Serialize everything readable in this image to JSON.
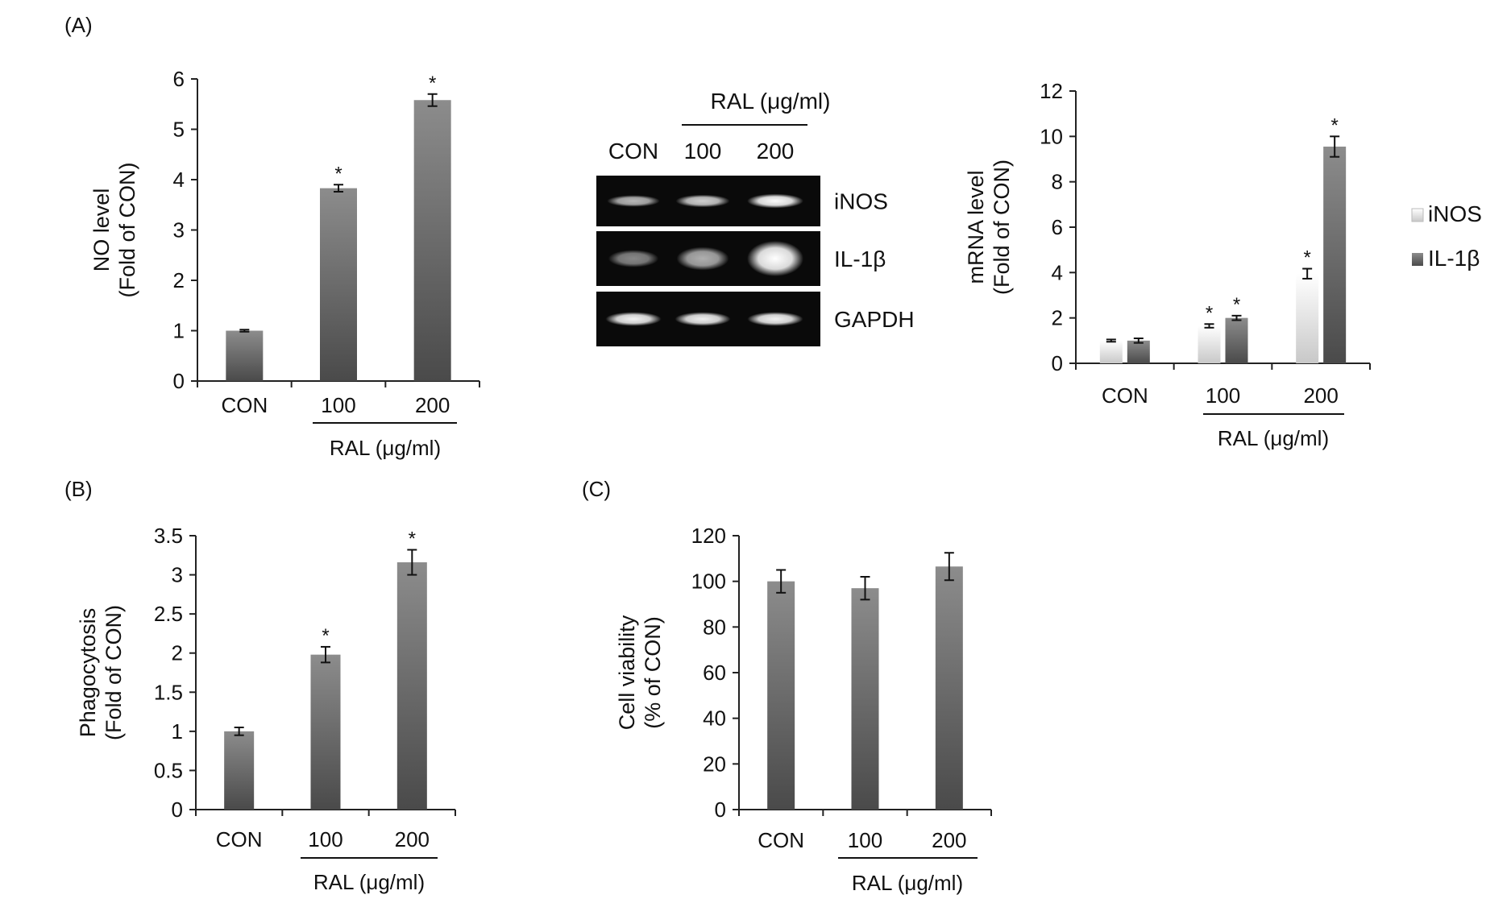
{
  "figure": {
    "panel_labels": {
      "a": "(A)",
      "b": "(B)",
      "c": "(C)"
    }
  },
  "gel": {
    "group_label": "RAL (μg/ml)",
    "lanes": [
      "CON",
      "100",
      "200"
    ],
    "rows": [
      "iNOS",
      "IL-1β",
      "GAPDH"
    ],
    "band_intensity": [
      [
        0.55,
        0.7,
        0.98
      ],
      [
        0.25,
        0.5,
        1.0
      ],
      [
        0.92,
        0.9,
        0.92
      ]
    ]
  },
  "chart_data": [
    {
      "id": "A_NO",
      "type": "bar",
      "categories": [
        "CON",
        "100",
        "200"
      ],
      "values": [
        1.0,
        3.83,
        5.58
      ],
      "errors": [
        0.02,
        0.07,
        0.12
      ],
      "significant": [
        "",
        "*",
        "*"
      ],
      "ylabel": [
        "NO level",
        "(Fold of CON)"
      ],
      "xgroup_label": "RAL (μg/ml)",
      "ylim": [
        0,
        6
      ],
      "yticks": [
        "0",
        "1",
        "2",
        "3",
        "4",
        "5",
        "6"
      ]
    },
    {
      "id": "A_mRNA",
      "type": "bar",
      "categories": [
        "CON",
        "100",
        "200"
      ],
      "series": [
        {
          "name": "iNOS",
          "values": [
            1.0,
            1.65,
            3.95
          ],
          "errors": [
            0.05,
            0.08,
            0.22
          ],
          "significant": [
            "",
            "*",
            "*"
          ]
        },
        {
          "name": "IL-1β",
          "values": [
            1.0,
            2.0,
            9.55
          ],
          "errors": [
            0.1,
            0.1,
            0.45
          ],
          "significant": [
            "",
            "*",
            "*"
          ]
        }
      ],
      "ylabel": [
        "mRNA level",
        "(Fold of CON)"
      ],
      "xgroup_label": "RAL (μg/ml)",
      "ylim": [
        0,
        12
      ],
      "yticks": [
        "0",
        "2",
        "4",
        "6",
        "8",
        "10",
        "12"
      ],
      "legend": "right"
    },
    {
      "id": "B_phago",
      "type": "bar",
      "categories": [
        "CON",
        "100",
        "200"
      ],
      "values": [
        1.0,
        1.98,
        3.16
      ],
      "errors": [
        0.05,
        0.1,
        0.16
      ],
      "significant": [
        "",
        "*",
        "*"
      ],
      "ylabel": [
        "Phagocytosis",
        "(Fold of CON)"
      ],
      "xgroup_label": "RAL (μg/ml)",
      "ylim": [
        0,
        3.5
      ],
      "yticks": [
        "0",
        "0.5",
        "1",
        "1.5",
        "2",
        "2.5",
        "3",
        "3.5"
      ]
    },
    {
      "id": "C_viability",
      "type": "bar",
      "categories": [
        "CON",
        "100",
        "200"
      ],
      "values": [
        100,
        97,
        106.5
      ],
      "errors": [
        5,
        5,
        6
      ],
      "significant": [
        "",
        "",
        ""
      ],
      "ylabel": [
        "Cell viability",
        "(% of CON)"
      ],
      "xgroup_label": "RAL (μg/ml)",
      "ylim": [
        0,
        120
      ],
      "yticks": [
        "0",
        "20",
        "40",
        "60",
        "80",
        "100",
        "120"
      ]
    }
  ]
}
